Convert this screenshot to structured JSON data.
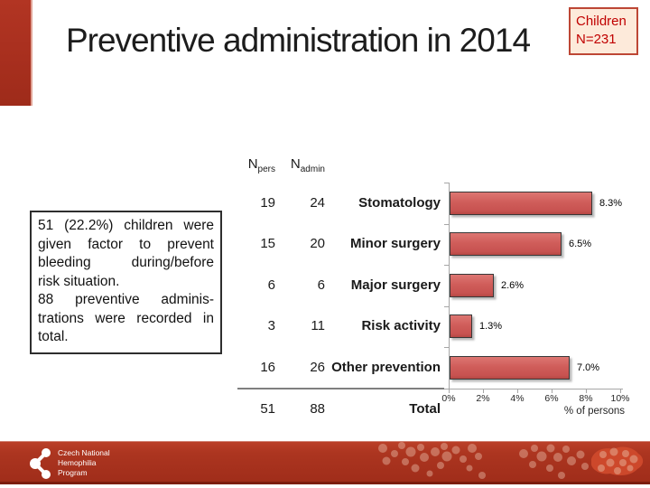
{
  "slide": {
    "title": "Preventive administration in 2014",
    "badge": {
      "line1": "Children",
      "line2": "N=231"
    },
    "note": {
      "lines": [
        "51 (22.2%) children were",
        "given factor to prevent",
        "bleeding during/before",
        "risk situation.",
        "88 preventive adminis-",
        "trations were recorded in",
        "total."
      ]
    },
    "footer": {
      "logo_lines": [
        "Czech National",
        "Hemophilia",
        "Program"
      ]
    }
  },
  "table": {
    "col1_header": {
      "base": "N",
      "sub": "pers"
    },
    "col2_header": {
      "base": "N",
      "sub": "admin"
    },
    "rows": [
      {
        "npers": "19",
        "nadmin": "24",
        "label": "Stomatology"
      },
      {
        "npers": "15",
        "nadmin": "20",
        "label": "Minor surgery"
      },
      {
        "npers": "6",
        "nadmin": "6",
        "label": "Major surgery"
      },
      {
        "npers": "3",
        "nadmin": "11",
        "label": "Risk activity"
      },
      {
        "npers": "16",
        "nadmin": "26",
        "label": "Other prevention"
      }
    ],
    "total": {
      "npers": "51",
      "nadmin": "88",
      "label": "Total"
    }
  },
  "chart_data": {
    "type": "bar",
    "orientation": "horizontal",
    "categories": [
      "Stomatology",
      "Minor surgery",
      "Major surgery",
      "Risk activity",
      "Other prevention"
    ],
    "values": [
      8.3,
      6.5,
      2.6,
      1.3,
      7.0
    ],
    "value_labels": [
      "8.3%",
      "6.5%",
      "2.6%",
      "1.3%",
      "7.0%"
    ],
    "title": "",
    "xlabel": "% of persons",
    "ylabel": "",
    "xlim": [
      0,
      10
    ],
    "x_ticks": [
      "0%",
      "2%",
      "4%",
      "6%",
      "8%",
      "10%"
    ],
    "grid": false,
    "legend": false,
    "bar_color": "#d05d5a",
    "bar_border_color": "#383838"
  },
  "colors": {
    "accent_red": "#a82f1e",
    "footer_red": "#a02d1a",
    "badge_bg": "#fdeada",
    "badge_border": "#bd4735",
    "badge_text": "#c00000",
    "axis_gray": "#a6a6a6"
  }
}
